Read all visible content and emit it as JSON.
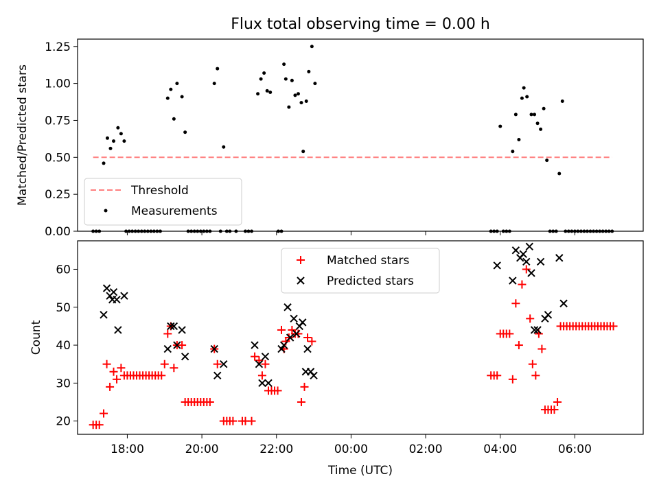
{
  "chart_data": [
    {
      "type": "scatter",
      "title": "Flux total observing time = 0.00 h",
      "ylabel": "Matched/Predicted stars",
      "xlim": [
        "16:40",
        "07:50"
      ],
      "ylim": [
        0,
        1.3
      ],
      "yticks": [
        "0.00",
        "0.25",
        "0.50",
        "0.75",
        "1.00",
        "1.25"
      ],
      "grid": false,
      "legend_position": "lower-left",
      "threshold": {
        "name": "Threshold",
        "y": 0.5,
        "x_range": [
          "17:05",
          "07:00"
        ],
        "color": "#ff7f7f"
      },
      "series": [
        {
          "name": "Measurements",
          "color": "#000000",
          "points": [
            [
              "17:05",
              0
            ],
            [
              "17:10",
              0
            ],
            [
              "17:15",
              0
            ],
            [
              "17:22",
              0.46
            ],
            [
              "17:28",
              0.63
            ],
            [
              "17:33",
              0.56
            ],
            [
              "17:38",
              0.61
            ],
            [
              "17:45",
              0.7
            ],
            [
              "17:50",
              0.66
            ],
            [
              "17:55",
              0.61
            ],
            [
              "17:58",
              0
            ],
            [
              "18:03",
              0
            ],
            [
              "18:08",
              0
            ],
            [
              "18:13",
              0
            ],
            [
              "18:18",
              0
            ],
            [
              "18:23",
              0
            ],
            [
              "18:28",
              0
            ],
            [
              "18:33",
              0
            ],
            [
              "18:38",
              0
            ],
            [
              "18:43",
              0
            ],
            [
              "18:48",
              0
            ],
            [
              "18:53",
              0
            ],
            [
              "19:05",
              0.9
            ],
            [
              "19:10",
              0.96
            ],
            [
              "19:15",
              0.76
            ],
            [
              "19:20",
              1.0
            ],
            [
              "19:28",
              0.91
            ],
            [
              "19:33",
              0.67
            ],
            [
              "19:38",
              0
            ],
            [
              "19:43",
              0
            ],
            [
              "19:48",
              0
            ],
            [
              "19:53",
              0
            ],
            [
              "19:58",
              0
            ],
            [
              "20:03",
              0
            ],
            [
              "20:08",
              0
            ],
            [
              "20:13",
              0
            ],
            [
              "20:20",
              1.0
            ],
            [
              "20:25",
              1.1
            ],
            [
              "20:35",
              0.57
            ],
            [
              "20:30",
              0
            ],
            [
              "20:40",
              0
            ],
            [
              "20:45",
              0
            ],
            [
              "20:55",
              0
            ],
            [
              "21:10",
              0
            ],
            [
              "21:15",
              0
            ],
            [
              "21:20",
              0
            ],
            [
              "21:30",
              0.93
            ],
            [
              "21:35",
              1.03
            ],
            [
              "21:40",
              1.07
            ],
            [
              "21:45",
              0.95
            ],
            [
              "21:50",
              0.94
            ],
            [
              "22:03",
              0
            ],
            [
              "22:08",
              0
            ],
            [
              "22:12",
              1.13
            ],
            [
              "22:15",
              1.03
            ],
            [
              "22:20",
              0.84
            ],
            [
              "22:25",
              1.02
            ],
            [
              "22:30",
              0.92
            ],
            [
              "22:35",
              0.93
            ],
            [
              "22:40",
              0.87
            ],
            [
              "22:43",
              0.54
            ],
            [
              "22:48",
              0.88
            ],
            [
              "22:52",
              1.08
            ],
            [
              "22:57",
              1.25
            ],
            [
              "23:02",
              1.0
            ],
            [
              "03:45",
              0
            ],
            [
              "03:50",
              0
            ],
            [
              "03:55",
              0
            ],
            [
              "04:00",
              0.71
            ],
            [
              "04:05",
              0
            ],
            [
              "04:10",
              0
            ],
            [
              "04:15",
              0
            ],
            [
              "04:20",
              0.54
            ],
            [
              "04:25",
              0.79
            ],
            [
              "04:30",
              0.62
            ],
            [
              "04:35",
              0.9
            ],
            [
              "04:38",
              0.97
            ],
            [
              "04:43",
              0.91
            ],
            [
              "04:50",
              0.79
            ],
            [
              "04:55",
              0.79
            ],
            [
              "05:00",
              0.73
            ],
            [
              "05:05",
              0.69
            ],
            [
              "05:10",
              0.83
            ],
            [
              "05:15",
              0.48
            ],
            [
              "05:20",
              0
            ],
            [
              "05:25",
              0
            ],
            [
              "05:30",
              0
            ],
            [
              "05:35",
              0.39
            ],
            [
              "05:40",
              0.88
            ],
            [
              "05:45",
              0
            ],
            [
              "05:50",
              0
            ],
            [
              "05:55",
              0
            ],
            [
              "06:00",
              0
            ],
            [
              "06:05",
              0
            ],
            [
              "06:10",
              0
            ],
            [
              "06:15",
              0
            ],
            [
              "06:20",
              0
            ],
            [
              "06:25",
              0
            ],
            [
              "06:30",
              0
            ],
            [
              "06:35",
              0
            ],
            [
              "06:40",
              0
            ],
            [
              "06:45",
              0
            ],
            [
              "06:50",
              0
            ],
            [
              "06:55",
              0
            ],
            [
              "07:00",
              0
            ]
          ]
        }
      ]
    },
    {
      "type": "scatter",
      "xlabel": "Time (UTC)",
      "ylabel": "Count",
      "xlim": [
        "16:40",
        "07:50"
      ],
      "ylim": [
        16.5,
        67.5
      ],
      "xticks": [
        "18:00",
        "20:00",
        "22:00",
        "00:00",
        "02:00",
        "04:00",
        "06:00"
      ],
      "yticks": [
        "20",
        "30",
        "40",
        "50",
        "60"
      ],
      "grid": false,
      "legend_position": "upper-center",
      "series": [
        {
          "name": "Matched stars",
          "marker": "+",
          "color": "#ff0000",
          "points": [
            [
              "17:05",
              19
            ],
            [
              "17:10",
              19
            ],
            [
              "17:15",
              19
            ],
            [
              "17:22",
              22
            ],
            [
              "17:27",
              35
            ],
            [
              "17:32",
              29
            ],
            [
              "17:38",
              33
            ],
            [
              "17:43",
              31
            ],
            [
              "17:50",
              34
            ],
            [
              "17:55",
              32
            ],
            [
              "18:00",
              32
            ],
            [
              "18:05",
              32
            ],
            [
              "18:10",
              32
            ],
            [
              "18:15",
              32
            ],
            [
              "18:20",
              32
            ],
            [
              "18:25",
              32
            ],
            [
              "18:30",
              32
            ],
            [
              "18:35",
              32
            ],
            [
              "18:40",
              32
            ],
            [
              "18:45",
              32
            ],
            [
              "18:50",
              32
            ],
            [
              "18:55",
              32
            ],
            [
              "19:00",
              35
            ],
            [
              "19:05",
              43
            ],
            [
              "19:10",
              45
            ],
            [
              "19:15",
              34
            ],
            [
              "19:20",
              40
            ],
            [
              "19:28",
              40
            ],
            [
              "19:33",
              25
            ],
            [
              "19:38",
              25
            ],
            [
              "19:43",
              25
            ],
            [
              "19:48",
              25
            ],
            [
              "19:53",
              25
            ],
            [
              "19:58",
              25
            ],
            [
              "20:03",
              25
            ],
            [
              "20:08",
              25
            ],
            [
              "20:13",
              25
            ],
            [
              "20:20",
              39
            ],
            [
              "20:25",
              35
            ],
            [
              "20:35",
              20
            ],
            [
              "20:40",
              20
            ],
            [
              "20:45",
              20
            ],
            [
              "20:50",
              20
            ],
            [
              "21:05",
              20
            ],
            [
              "21:10",
              20
            ],
            [
              "21:20",
              20
            ],
            [
              "21:25",
              37
            ],
            [
              "21:32",
              36
            ],
            [
              "21:37",
              32
            ],
            [
              "21:42",
              35
            ],
            [
              "21:47",
              28
            ],
            [
              "21:52",
              28
            ],
            [
              "21:57",
              28
            ],
            [
              "22:02",
              28
            ],
            [
              "22:08",
              44
            ],
            [
              "22:12",
              39
            ],
            [
              "22:15",
              41
            ],
            [
              "22:20",
              42
            ],
            [
              "22:25",
              44
            ],
            [
              "22:30",
              43
            ],
            [
              "22:35",
              43
            ],
            [
              "22:40",
              25
            ],
            [
              "22:45",
              29
            ],
            [
              "22:50",
              42
            ],
            [
              "22:57",
              41
            ],
            [
              "03:45",
              32
            ],
            [
              "03:50",
              32
            ],
            [
              "03:55",
              32
            ],
            [
              "04:00",
              43
            ],
            [
              "04:05",
              43
            ],
            [
              "04:10",
              43
            ],
            [
              "04:15",
              43
            ],
            [
              "04:20",
              31
            ],
            [
              "04:25",
              51
            ],
            [
              "04:30",
              40
            ],
            [
              "04:35",
              56
            ],
            [
              "04:42",
              60
            ],
            [
              "04:48",
              47
            ],
            [
              "04:52",
              35
            ],
            [
              "04:57",
              32
            ],
            [
              "05:02",
              43
            ],
            [
              "05:07",
              39
            ],
            [
              "05:12",
              23
            ],
            [
              "05:17",
              23
            ],
            [
              "05:22",
              23
            ],
            [
              "05:27",
              23
            ],
            [
              "05:32",
              25
            ],
            [
              "05:37",
              45
            ],
            [
              "05:42",
              45
            ],
            [
              "05:47",
              45
            ],
            [
              "05:52",
              45
            ],
            [
              "05:57",
              45
            ],
            [
              "06:02",
              45
            ],
            [
              "06:07",
              45
            ],
            [
              "06:12",
              45
            ],
            [
              "06:17",
              45
            ],
            [
              "06:22",
              45
            ],
            [
              "06:27",
              45
            ],
            [
              "06:32",
              45
            ],
            [
              "06:37",
              45
            ],
            [
              "06:42",
              45
            ],
            [
              "06:47",
              45
            ],
            [
              "06:52",
              45
            ],
            [
              "06:57",
              45
            ],
            [
              "07:02",
              45
            ]
          ]
        },
        {
          "name": "Predicted stars",
          "marker": "x",
          "color": "#000000",
          "points": [
            [
              "17:22",
              48
            ],
            [
              "17:27",
              55
            ],
            [
              "17:32",
              53
            ],
            [
              "17:36",
              52
            ],
            [
              "17:38",
              54
            ],
            [
              "17:43",
              52
            ],
            [
              "17:45",
              44
            ],
            [
              "17:55",
              53
            ],
            [
              "19:05",
              39
            ],
            [
              "19:10",
              45
            ],
            [
              "19:15",
              45
            ],
            [
              "19:20",
              40
            ],
            [
              "19:28",
              44
            ],
            [
              "19:33",
              37
            ],
            [
              "20:20",
              39
            ],
            [
              "20:25",
              32
            ],
            [
              "20:35",
              35
            ],
            [
              "21:25",
              40
            ],
            [
              "21:32",
              35
            ],
            [
              "21:37",
              30
            ],
            [
              "21:42",
              37
            ],
            [
              "21:47",
              30
            ],
            [
              "22:08",
              39
            ],
            [
              "22:12",
              40
            ],
            [
              "22:18",
              50
            ],
            [
              "22:22",
              42
            ],
            [
              "22:28",
              47
            ],
            [
              "22:32",
              43
            ],
            [
              "22:37",
              45
            ],
            [
              "22:42",
              46
            ],
            [
              "22:47",
              33
            ],
            [
              "22:50",
              39
            ],
            [
              "22:55",
              33
            ],
            [
              "23:00",
              32
            ],
            [
              "03:55",
              61
            ],
            [
              "04:20",
              57
            ],
            [
              "04:25",
              65
            ],
            [
              "04:32",
              63
            ],
            [
              "04:37",
              64
            ],
            [
              "04:42",
              62
            ],
            [
              "04:47",
              66
            ],
            [
              "04:50",
              59
            ],
            [
              "04:55",
              44
            ],
            [
              "05:00",
              44
            ],
            [
              "05:05",
              62
            ],
            [
              "05:12",
              47
            ],
            [
              "05:17",
              48
            ],
            [
              "05:35",
              63
            ],
            [
              "05:42",
              51
            ]
          ]
        }
      ]
    }
  ]
}
